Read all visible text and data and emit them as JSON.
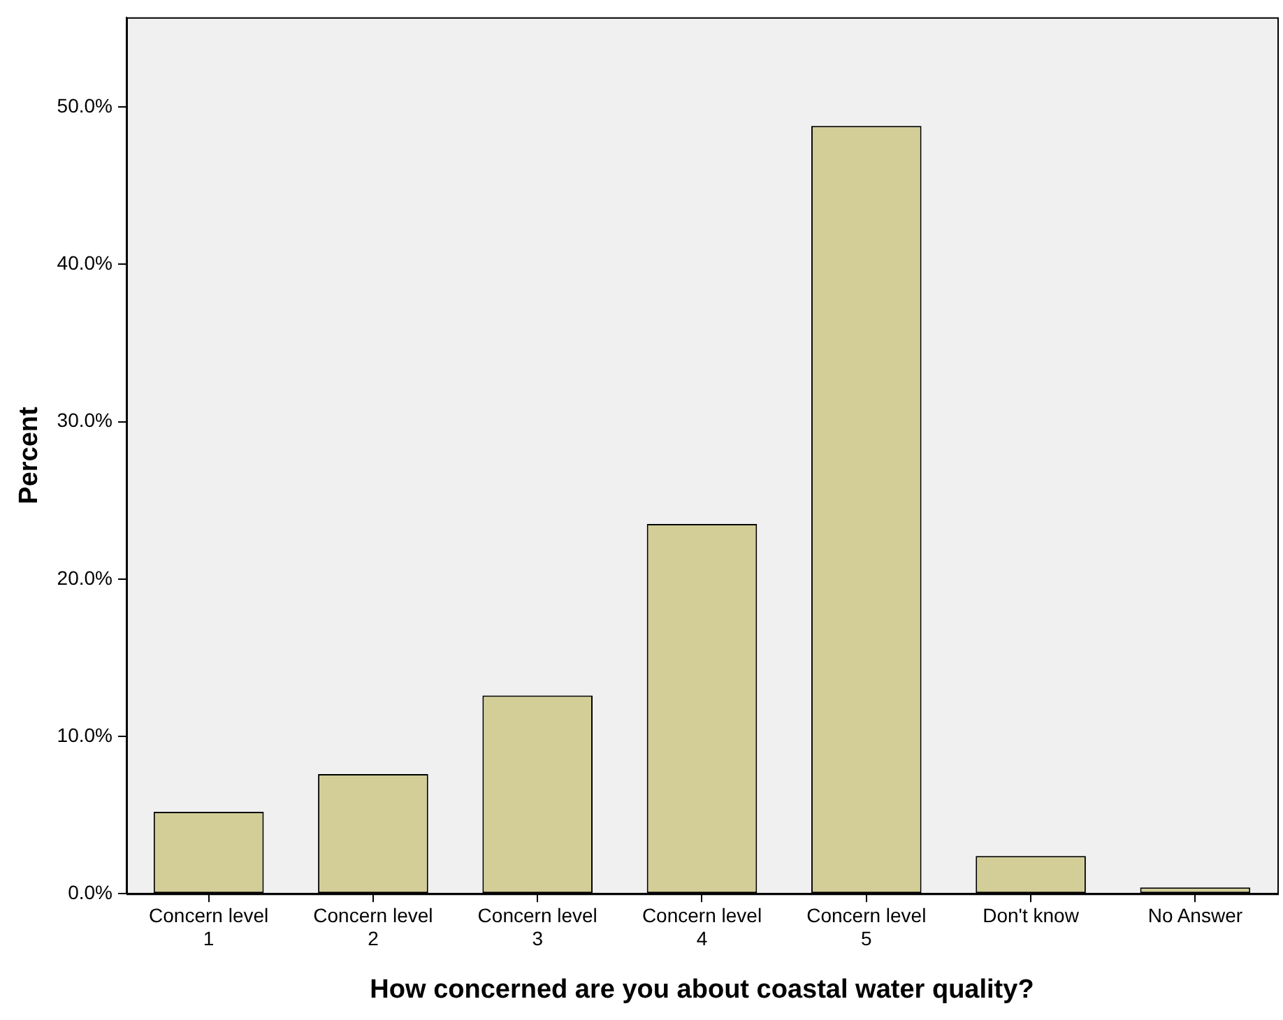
{
  "chart_data": {
    "type": "bar",
    "xlabel": "How concerned are you about coastal water quality?",
    "ylabel": "Percent",
    "categories": [
      "Concern level 1",
      "Concern level 2",
      "Concern level 3",
      "Concern level 4",
      "Concern level 5",
      "Don't know",
      "No Answer"
    ],
    "values": [
      5.2,
      7.6,
      12.6,
      23.5,
      48.8,
      2.4,
      0.4
    ],
    "color": "#d3ce97",
    "ylim": [
      0,
      55.7
    ],
    "yticks": [
      {
        "value": 0,
        "label": "0.0%"
      },
      {
        "value": 10,
        "label": "10.0%"
      },
      {
        "value": 20,
        "label": "20.0%"
      },
      {
        "value": 30,
        "label": "30.0%"
      },
      {
        "value": 40,
        "label": "40.0%"
      },
      {
        "value": 50,
        "label": "50.0%"
      }
    ],
    "grid": false,
    "legend": false
  }
}
